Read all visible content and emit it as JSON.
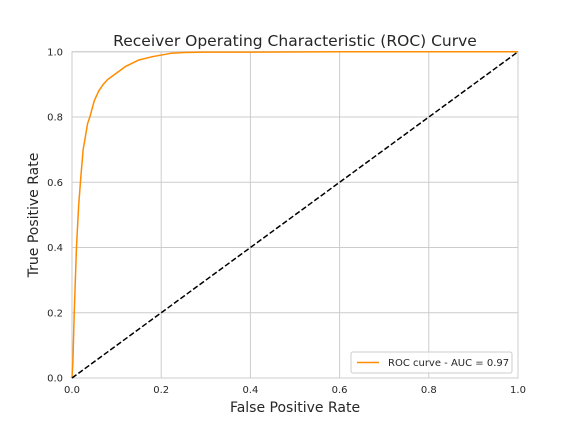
{
  "chart_data": {
    "type": "line",
    "title": "Receiver Operating Characteristic (ROC) Curve",
    "xlabel": "False Positive Rate",
    "ylabel": "True Positive Rate",
    "xlim": [
      0.0,
      1.0
    ],
    "ylim": [
      0.0,
      1.0
    ],
    "x_ticks": [
      "0.0",
      "0.2",
      "0.4",
      "0.6",
      "0.8",
      "1.0"
    ],
    "y_ticks": [
      "0.0",
      "0.2",
      "0.4",
      "0.6",
      "0.8",
      "1.0"
    ],
    "grid": true,
    "legend_position": "lower-right",
    "series": [
      {
        "name": "ROC curve - AUC = 0.97",
        "color": "#ff8c00",
        "style": "solid",
        "x": [
          0.0,
          0.002,
          0.005,
          0.01,
          0.015,
          0.02,
          0.025,
          0.03,
          0.035,
          0.04,
          0.05,
          0.06,
          0.07,
          0.08,
          0.1,
          0.12,
          0.15,
          0.18,
          0.2,
          0.22,
          0.25,
          0.3,
          0.4,
          0.6,
          0.8,
          1.0
        ],
        "y": [
          0.0,
          0.05,
          0.2,
          0.4,
          0.53,
          0.62,
          0.7,
          0.74,
          0.78,
          0.8,
          0.85,
          0.88,
          0.9,
          0.915,
          0.935,
          0.955,
          0.975,
          0.985,
          0.99,
          0.995,
          0.998,
          0.999,
          0.999,
          1.0,
          1.0,
          1.0
        ]
      },
      {
        "name": "",
        "color": "#000000",
        "style": "dashed",
        "x": [
          0.0,
          1.0
        ],
        "y": [
          0.0,
          1.0
        ]
      }
    ]
  }
}
